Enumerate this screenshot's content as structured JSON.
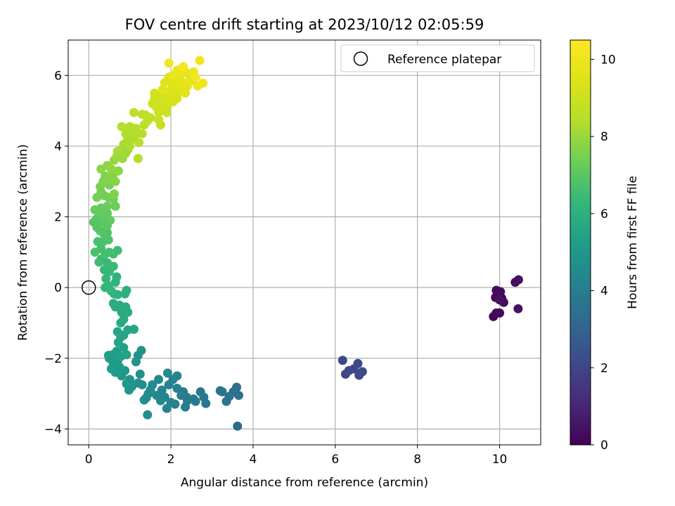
{
  "chart_data": {
    "type": "scatter",
    "title": "FOV centre drift starting at 2023/10/12 02:05:59",
    "xlabel": "Angular distance from reference (arcmin)",
    "ylabel": "Rotation from reference (arcmin)",
    "xlim": [
      -0.5,
      11
    ],
    "ylim": [
      -4.45,
      7.0
    ],
    "xticks": [
      0,
      2,
      4,
      6,
      8,
      10
    ],
    "yticks": [
      -4,
      -2,
      0,
      2,
      4,
      6
    ],
    "grid": true,
    "legend": {
      "placement": "top-right",
      "entries": [
        "Reference platepar"
      ]
    },
    "reference_marker": {
      "label": "Reference platepar",
      "x": 0,
      "y": 0,
      "style": "open-circle"
    },
    "colorbar": {
      "label": "Hours from first FF file",
      "colormap": "viridis",
      "range": [
        0,
        10.5
      ],
      "ticks": [
        0,
        2,
        4,
        6,
        8,
        10
      ]
    },
    "series": [
      {
        "value_fields": [
          "x",
          "y",
          "hours"
        ],
        "points": [
          [
            9.85,
            -0.82,
            0.1
          ],
          [
            9.92,
            -0.72,
            0.1
          ],
          [
            10.0,
            -0.72,
            0.2
          ],
          [
            9.9,
            -0.28,
            0.2
          ],
          [
            10.05,
            -0.3,
            0.2
          ],
          [
            9.92,
            -0.08,
            0.3
          ],
          [
            10.02,
            -0.12,
            0.3
          ],
          [
            10.1,
            -0.42,
            0.3
          ],
          [
            10.38,
            0.15,
            0.4
          ],
          [
            10.46,
            0.22,
            0.4
          ],
          [
            10.45,
            -0.6,
            0.4
          ],
          [
            10.0,
            -0.35,
            0.5
          ],
          [
            6.18,
            -2.06,
            2.0
          ],
          [
            6.25,
            -2.45,
            2.0
          ],
          [
            6.33,
            -2.35,
            2.1
          ],
          [
            6.55,
            -2.15,
            2.1
          ],
          [
            6.58,
            -2.48,
            2.2
          ],
          [
            6.66,
            -2.38,
            2.2
          ],
          [
            6.45,
            -2.3,
            2.1
          ],
          [
            6.6,
            -2.42,
            2.2
          ],
          [
            3.62,
            -3.92,
            3.2
          ],
          [
            3.65,
            -3.05,
            3.4
          ],
          [
            3.6,
            -2.82,
            3.4
          ],
          [
            3.52,
            -2.95,
            3.5
          ],
          [
            3.42,
            -3.08,
            3.5
          ],
          [
            3.35,
            -3.22,
            3.6
          ],
          [
            3.2,
            -2.92,
            3.6
          ],
          [
            3.25,
            -2.95,
            3.7
          ],
          [
            2.85,
            -3.28,
            3.7
          ],
          [
            2.8,
            -3.1,
            3.8
          ],
          [
            2.72,
            -2.95,
            3.8
          ],
          [
            2.55,
            -3.15,
            3.9
          ],
          [
            2.4,
            -3.2,
            3.9
          ],
          [
            2.35,
            -3.38,
            4.0
          ],
          [
            2.3,
            -2.95,
            4.0
          ],
          [
            2.25,
            -3.05,
            4.0
          ],
          [
            2.1,
            -3.3,
            4.1
          ],
          [
            2.15,
            -2.85,
            4.1
          ],
          [
            2.05,
            -2.6,
            4.2
          ],
          [
            2.0,
            -3.25,
            4.2
          ],
          [
            1.95,
            -2.75,
            4.2
          ],
          [
            1.9,
            -3.42,
            4.3
          ],
          [
            1.85,
            -3.1,
            4.3
          ],
          [
            1.78,
            -2.9,
            4.3
          ],
          [
            1.75,
            -3.2,
            4.4
          ],
          [
            1.7,
            -2.6,
            4.4
          ],
          [
            1.65,
            -3.05,
            4.4
          ],
          [
            1.92,
            -2.42,
            4.5
          ],
          [
            1.55,
            -2.75,
            4.5
          ],
          [
            1.5,
            -2.9,
            4.5
          ],
          [
            1.45,
            -3.0,
            4.6
          ],
          [
            1.4,
            -3.12,
            4.6
          ],
          [
            1.43,
            -3.6,
            4.6
          ],
          [
            1.35,
            -3.18,
            4.7
          ],
          [
            1.3,
            -2.75,
            4.7
          ],
          [
            2.15,
            -2.5,
            4.2
          ],
          [
            2.38,
            -3.1,
            3.9
          ],
          [
            2.6,
            -3.22,
            3.8
          ],
          [
            1.2,
            -2.7,
            4.7
          ],
          [
            1.25,
            -2.45,
            4.7
          ],
          [
            1.28,
            -1.78,
            4.8
          ],
          [
            1.2,
            -1.92,
            4.8
          ],
          [
            1.15,
            -2.1,
            4.8
          ],
          [
            1.05,
            -2.8,
            4.9
          ],
          [
            1.0,
            -2.6,
            4.9
          ],
          [
            0.98,
            -2.9,
            4.9
          ],
          [
            0.92,
            -2.72,
            5.0
          ],
          [
            0.88,
            -2.35,
            5.0
          ],
          [
            0.8,
            -2.5,
            5.0
          ],
          [
            0.75,
            -2.25,
            5.1
          ],
          [
            0.7,
            -2.1,
            5.1
          ],
          [
            0.65,
            -2.4,
            5.1
          ],
          [
            0.6,
            -2.15,
            5.2
          ],
          [
            0.55,
            -2.3,
            5.2
          ],
          [
            0.5,
            -2.0,
            5.2
          ],
          [
            0.48,
            -1.92,
            5.3
          ],
          [
            0.58,
            -1.9,
            5.3
          ],
          [
            0.68,
            -1.8,
            5.3
          ],
          [
            0.78,
            -1.95,
            5.4
          ],
          [
            0.85,
            -1.7,
            5.4
          ],
          [
            0.92,
            -1.9,
            5.4
          ],
          [
            0.72,
            -1.55,
            5.5
          ],
          [
            0.78,
            -1.4,
            5.5
          ],
          [
            0.85,
            -1.35,
            5.5
          ],
          [
            0.95,
            -1.2,
            5.6
          ],
          [
            1.1,
            -1.18,
            5.6
          ],
          [
            0.7,
            -1.25,
            5.6
          ],
          [
            0.78,
            -1.0,
            5.7
          ],
          [
            0.85,
            -0.9,
            5.7
          ],
          [
            0.8,
            -0.7,
            5.7
          ],
          [
            0.9,
            -0.55,
            5.8
          ],
          [
            0.95,
            -0.7,
            5.8
          ],
          [
            0.75,
            -0.5,
            5.8
          ],
          [
            0.65,
            -0.55,
            5.9
          ],
          [
            0.6,
            -0.45,
            5.9
          ],
          [
            0.88,
            -0.18,
            6.0
          ],
          [
            0.92,
            -0.08,
            6.0
          ],
          [
            0.7,
            -0.2,
            6.0
          ],
          [
            0.62,
            -0.18,
            6.1
          ],
          [
            0.65,
            0.15,
            6.1
          ],
          [
            0.68,
            0.3,
            6.1
          ],
          [
            0.4,
            0.0,
            6.2
          ],
          [
            0.48,
            0.05,
            6.2
          ],
          [
            0.55,
            -0.1,
            6.2
          ],
          [
            0.42,
            0.25,
            6.3
          ],
          [
            0.38,
            0.5,
            6.3
          ],
          [
            0.5,
            0.45,
            6.3
          ],
          [
            0.6,
            0.6,
            6.4
          ],
          [
            0.45,
            0.7,
            6.4
          ],
          [
            0.3,
            0.8,
            6.4
          ],
          [
            0.25,
            0.72,
            6.5
          ],
          [
            0.7,
            1.05,
            6.5
          ],
          [
            0.6,
            0.95,
            6.5
          ],
          [
            0.5,
            1.0,
            6.6
          ],
          [
            0.4,
            0.95,
            6.6
          ],
          [
            0.3,
            1.1,
            6.6
          ],
          [
            0.15,
            1.0,
            6.7
          ],
          [
            0.22,
            1.3,
            6.7
          ],
          [
            0.35,
            1.3,
            6.7
          ],
          [
            0.48,
            1.35,
            6.8
          ],
          [
            0.45,
            1.55,
            6.8
          ],
          [
            0.38,
            1.5,
            6.8
          ],
          [
            0.28,
            1.6,
            6.9
          ],
          [
            0.2,
            1.7,
            6.9
          ],
          [
            0.12,
            1.85,
            6.9
          ],
          [
            0.2,
            1.95,
            7.0
          ],
          [
            0.35,
            1.85,
            7.0
          ],
          [
            0.45,
            1.75,
            7.0
          ],
          [
            0.52,
            1.9,
            7.1
          ],
          [
            0.45,
            2.1,
            7.1
          ],
          [
            0.35,
            2.0,
            7.1
          ],
          [
            0.25,
            2.15,
            7.2
          ],
          [
            0.15,
            2.2,
            7.2
          ],
          [
            0.3,
            2.25,
            7.2
          ],
          [
            0.45,
            2.3,
            7.3
          ],
          [
            0.6,
            2.5,
            7.3
          ],
          [
            0.65,
            2.3,
            7.3
          ],
          [
            0.48,
            2.55,
            7.4
          ],
          [
            0.38,
            2.6,
            7.4
          ],
          [
            0.3,
            2.7,
            7.4
          ],
          [
            0.2,
            2.55,
            7.5
          ],
          [
            0.28,
            2.85,
            7.5
          ],
          [
            0.5,
            2.9,
            7.5
          ],
          [
            0.62,
            2.65,
            7.6
          ],
          [
            0.35,
            3.0,
            7.6
          ],
          [
            0.4,
            3.15,
            7.6
          ],
          [
            0.5,
            3.05,
            7.7
          ],
          [
            0.6,
            3.2,
            7.7
          ],
          [
            0.65,
            3.0,
            7.7
          ],
          [
            0.72,
            3.3,
            7.8
          ],
          [
            0.3,
            3.35,
            7.8
          ],
          [
            0.45,
            3.45,
            7.8
          ],
          [
            0.55,
            3.35,
            7.9
          ],
          [
            0.62,
            3.6,
            7.9
          ],
          [
            0.68,
            3.7,
            8.0
          ],
          [
            0.75,
            3.75,
            8.0
          ],
          [
            0.82,
            3.65,
            8.0
          ],
          [
            0.9,
            3.8,
            8.1
          ],
          [
            0.95,
            3.9,
            8.1
          ],
          [
            0.8,
            3.9,
            8.1
          ],
          [
            0.7,
            3.85,
            8.2
          ],
          [
            0.85,
            4.05,
            8.2
          ],
          [
            0.95,
            4.15,
            8.2
          ],
          [
            1.0,
            4.0,
            8.3
          ],
          [
            1.05,
            4.2,
            8.3
          ],
          [
            1.12,
            4.3,
            8.3
          ],
          [
            0.9,
            4.35,
            8.4
          ],
          [
            1.05,
            4.4,
            8.4
          ],
          [
            1.15,
            4.5,
            8.4
          ],
          [
            1.2,
            3.65,
            8.4
          ],
          [
            1.22,
            4.1,
            8.5
          ],
          [
            1.3,
            4.35,
            8.5
          ],
          [
            0.8,
            4.55,
            8.5
          ],
          [
            1.35,
            4.6,
            8.6
          ],
          [
            1.42,
            4.7,
            8.6
          ],
          [
            1.38,
            4.88,
            8.6
          ],
          [
            1.5,
            4.8,
            8.7
          ],
          [
            1.1,
            4.95,
            8.7
          ],
          [
            1.3,
            4.9,
            8.7
          ],
          [
            1.12,
            4.5,
            8.5
          ],
          [
            1.0,
            4.55,
            8.4
          ],
          [
            0.95,
            4.25,
            8.3
          ],
          [
            1.7,
            4.75,
            8.9
          ],
          [
            1.75,
            4.6,
            8.9
          ],
          [
            1.7,
            4.95,
            9.0
          ],
          [
            1.8,
            5.05,
            9.0
          ],
          [
            1.9,
            5.15,
            9.0
          ],
          [
            1.75,
            5.25,
            9.1
          ],
          [
            1.65,
            5.1,
            9.1
          ],
          [
            1.6,
            5.35,
            9.1
          ],
          [
            1.6,
            5.5,
            9.2
          ],
          [
            1.7,
            5.45,
            9.2
          ],
          [
            1.85,
            5.4,
            9.2
          ],
          [
            1.95,
            5.3,
            9.3
          ],
          [
            2.05,
            5.25,
            9.3
          ],
          [
            1.95,
            5.55,
            9.3
          ],
          [
            2.05,
            5.6,
            9.4
          ],
          [
            2.12,
            5.45,
            9.4
          ],
          [
            2.2,
            5.55,
            9.4
          ],
          [
            2.25,
            5.65,
            9.5
          ],
          [
            2.1,
            5.75,
            9.5
          ],
          [
            2.0,
            5.8,
            9.5
          ],
          [
            1.85,
            5.8,
            9.5
          ],
          [
            1.8,
            5.6,
            9.6
          ],
          [
            1.95,
            5.95,
            9.6
          ],
          [
            2.05,
            5.9,
            9.6
          ],
          [
            2.2,
            5.9,
            9.7
          ],
          [
            2.3,
            5.8,
            9.7
          ],
          [
            2.4,
            5.7,
            9.7
          ],
          [
            2.5,
            5.85,
            9.8
          ],
          [
            2.45,
            6.0,
            9.8
          ],
          [
            2.35,
            6.1,
            9.8
          ],
          [
            2.25,
            6.05,
            9.9
          ],
          [
            2.15,
            6.15,
            9.9
          ],
          [
            2.05,
            6.0,
            9.9
          ],
          [
            2.55,
            6.1,
            10.0
          ],
          [
            2.65,
            5.7,
            10.0
          ],
          [
            2.78,
            5.78,
            10.0
          ],
          [
            2.7,
            6.42,
            10.1
          ],
          [
            1.95,
            6.35,
            10.1
          ],
          [
            2.3,
            6.25,
            10.2
          ],
          [
            2.6,
            5.95,
            10.2
          ],
          [
            2.35,
            5.5,
            9.6
          ],
          [
            1.55,
            5.2,
            9.0
          ],
          [
            1.9,
            4.95,
            9.0
          ],
          [
            2.15,
            5.35,
            9.3
          ]
        ]
      }
    ]
  }
}
